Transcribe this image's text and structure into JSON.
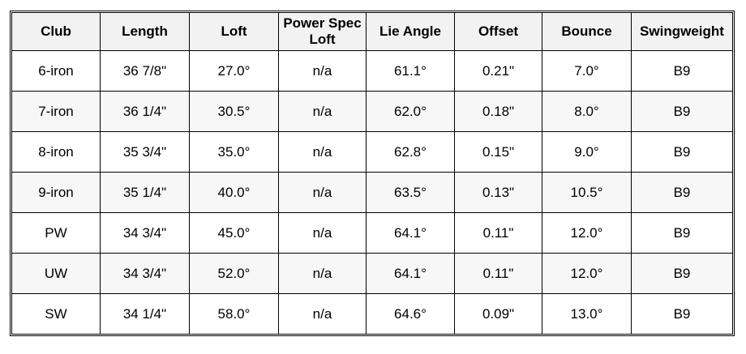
{
  "chart_data": {
    "type": "table",
    "columns": [
      "Club",
      "Length",
      "Loft",
      "Power Spec Loft",
      "Lie Angle",
      "Offset",
      "Bounce",
      "Swingweight"
    ],
    "rows": [
      [
        "6-iron",
        "36 7/8\"",
        "27.0°",
        "n/a",
        "61.1°",
        "0.21\"",
        "7.0°",
        "B9"
      ],
      [
        "7-iron",
        "36 1/4\"",
        "30.5°",
        "n/a",
        "62.0°",
        "0.18\"",
        "8.0°",
        "B9"
      ],
      [
        "8-iron",
        "35 3/4\"",
        "35.0°",
        "n/a",
        "62.8°",
        "0.15\"",
        "9.0°",
        "B9"
      ],
      [
        "9-iron",
        "35 1/4\"",
        "40.0°",
        "n/a",
        "63.5°",
        "0.13\"",
        "10.5°",
        "B9"
      ],
      [
        "PW",
        "34 3/4\"",
        "45.0°",
        "n/a",
        "64.1°",
        "0.11\"",
        "12.0°",
        "B9"
      ],
      [
        "UW",
        "34 3/4\"",
        "52.0°",
        "n/a",
        "64.1°",
        "0.11\"",
        "12.0°",
        "B9"
      ],
      [
        "SW",
        "34 1/4\"",
        "58.0°",
        "n/a",
        "64.6°",
        "0.09\"",
        "13.0°",
        "B9"
      ]
    ],
    "layout": {
      "grid": true,
      "header_style": "bold-centered",
      "alternating_rows": [
        1,
        3,
        5
      ]
    },
    "colors": {
      "border": "#000000",
      "header_bg": "#f2f2f2",
      "alt_row_bg": "#f7f7f7",
      "row_bg": "#ffffff",
      "text": "#000000",
      "page_bg": "#ffffff"
    }
  }
}
